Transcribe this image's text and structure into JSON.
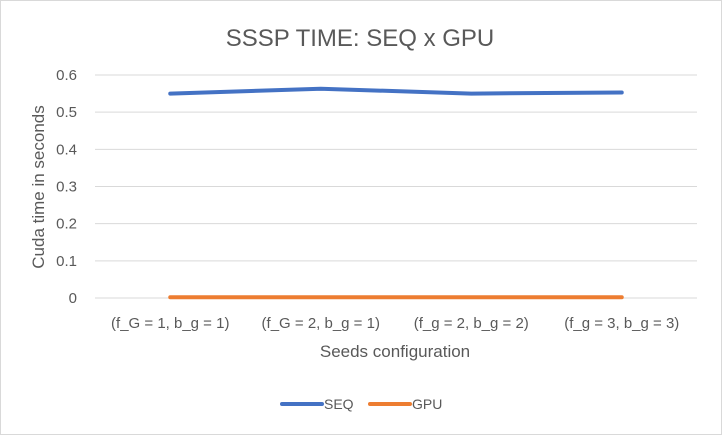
{
  "chart_data": {
    "type": "line",
    "title": "SSSP TIME: SEQ x GPU",
    "xlabel": "Seeds configuration",
    "ylabel": "Cuda time in seconds",
    "categories": [
      "(f_G = 1, b_g = 1)",
      "(f_G = 2, b_g = 1)",
      "(f_g = 2, b_g = 2)",
      "(f_g = 3, b_g = 3)"
    ],
    "ylim": [
      0,
      0.6
    ],
    "yticks": [
      "0",
      "0.1",
      "0.2",
      "0.3",
      "0.4",
      "0.5",
      "0.6"
    ],
    "grid": true,
    "legend_position": "bottom",
    "series": [
      {
        "name": "SEQ",
        "color": "#4472c4",
        "values": [
          0.55,
          0.563,
          0.55,
          0.553
        ]
      },
      {
        "name": "GPU",
        "color": "#ed7d31",
        "values": [
          0.002,
          0.002,
          0.002,
          0.002
        ]
      }
    ]
  }
}
